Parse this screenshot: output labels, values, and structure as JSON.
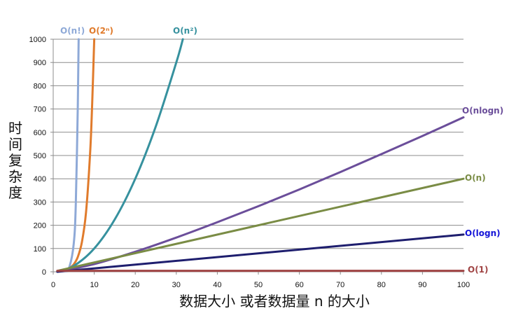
{
  "chart_data": {
    "type": "line",
    "title": "",
    "xlabel": "数据大小 或者数据量 n 的大小",
    "ylabel": "时间复杂度",
    "xlim": [
      0,
      100
    ],
    "ylim": [
      0,
      1000
    ],
    "xticks": [
      "0",
      "10",
      "20",
      "30",
      "40",
      "50",
      "60",
      "70",
      "80",
      "90",
      "100"
    ],
    "yticks": [
      "0",
      "100",
      "200",
      "300",
      "400",
      "500",
      "600",
      "700",
      "800",
      "900",
      "1000"
    ],
    "grid": "horizontal",
    "legend": "labels-at-line-ends",
    "series": [
      {
        "name": "O(n!)",
        "color": "#8EA9D7",
        "points": [
          [
            1,
            1
          ],
          [
            2,
            2
          ],
          [
            3,
            6
          ],
          [
            4,
            24
          ],
          [
            5,
            120
          ],
          [
            5.5,
            287
          ],
          [
            6,
            720
          ],
          [
            6.2,
            1000
          ]
        ]
      },
      {
        "name": "O(2ⁿ)",
        "color": "#E07B2C",
        "points": [
          [
            1,
            2
          ],
          [
            2,
            4
          ],
          [
            3,
            8
          ],
          [
            4,
            16
          ],
          [
            5,
            32
          ],
          [
            6,
            64
          ],
          [
            7,
            128
          ],
          [
            8,
            256
          ],
          [
            9,
            512
          ],
          [
            9.5,
            724
          ],
          [
            10,
            1000
          ]
        ]
      },
      {
        "name": "O(n²)",
        "color": "#36919E",
        "points": [
          [
            1,
            1
          ],
          [
            5,
            25
          ],
          [
            10,
            100
          ],
          [
            15,
            225
          ],
          [
            20,
            400
          ],
          [
            25,
            625
          ],
          [
            30,
            900
          ],
          [
            31.6,
            1000
          ]
        ]
      },
      {
        "name": "O(nlogn)",
        "color": "#6B4E9A",
        "points": [
          [
            1,
            0
          ],
          [
            10,
            33
          ],
          [
            20,
            86
          ],
          [
            30,
            147
          ],
          [
            40,
            213
          ],
          [
            50,
            282
          ],
          [
            60,
            354
          ],
          [
            70,
            429
          ],
          [
            80,
            506
          ],
          [
            90,
            584
          ],
          [
            100,
            664
          ]
        ]
      },
      {
        "name": "O(n)",
        "color": "#7A8C45",
        "points": [
          [
            1,
            4
          ],
          [
            100,
            400
          ]
        ]
      },
      {
        "name": "O(logn)",
        "color": "#1E1E6E",
        "labelColor": "#1515D8",
        "points": [
          [
            1,
            0
          ],
          [
            100,
            160
          ]
        ]
      },
      {
        "name": "O(1)",
        "color": "#A04444",
        "points": [
          [
            1,
            4
          ],
          [
            100,
            4
          ]
        ]
      }
    ]
  }
}
